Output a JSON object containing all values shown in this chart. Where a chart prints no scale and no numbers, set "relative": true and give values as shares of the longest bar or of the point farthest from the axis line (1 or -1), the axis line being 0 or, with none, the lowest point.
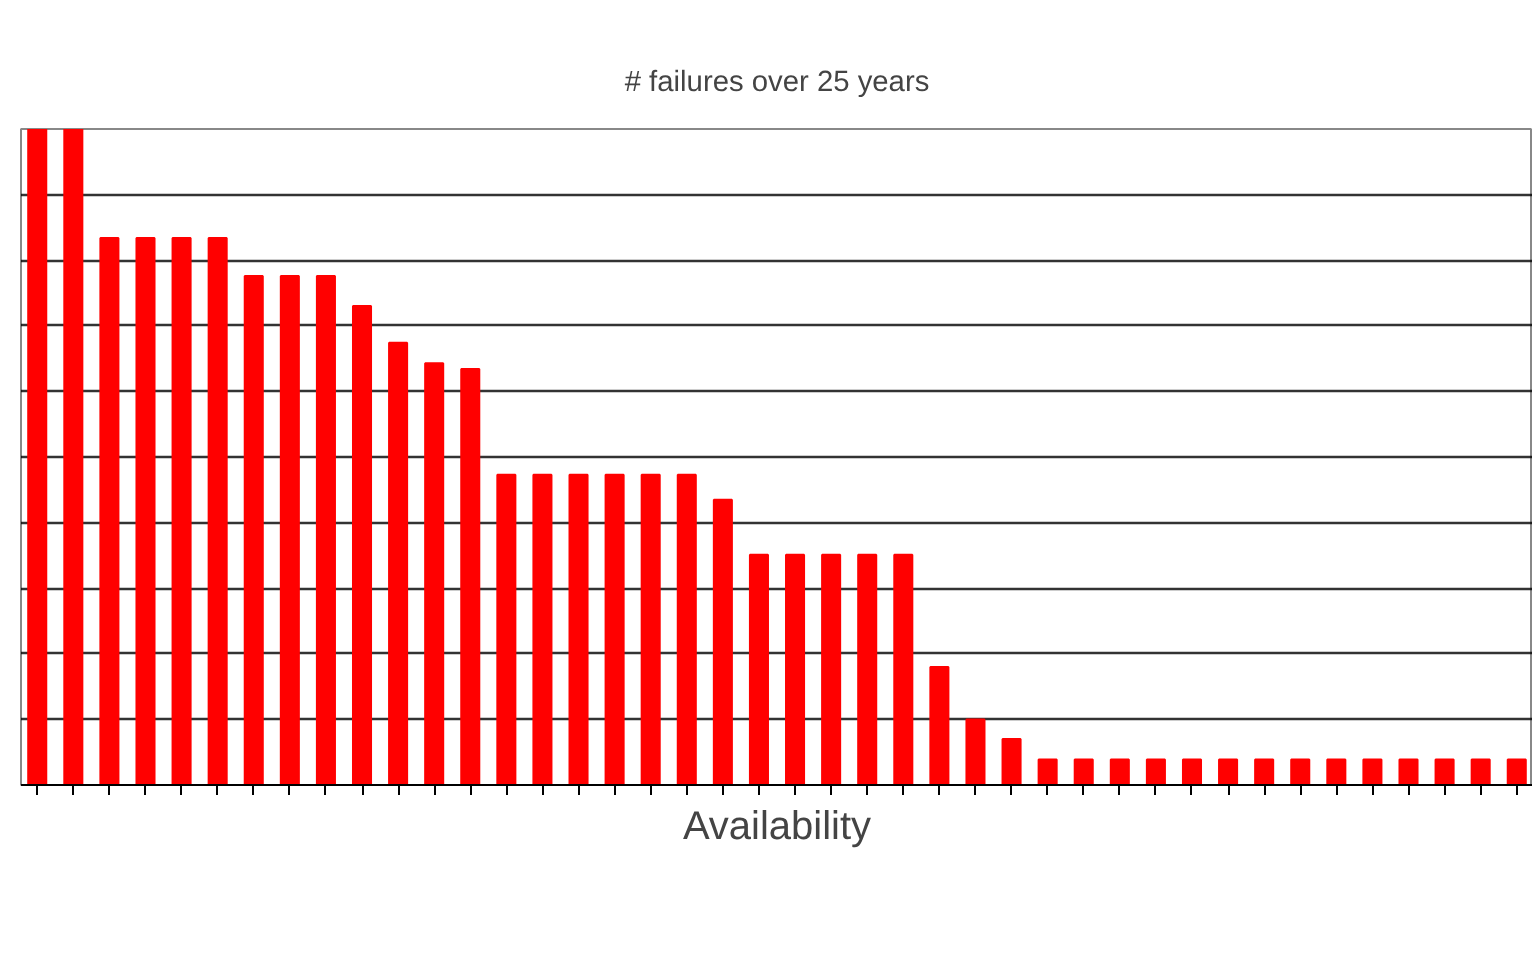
{
  "chart_data": {
    "type": "bar",
    "title": "# failures over 25 years",
    "xlabel": "Availability",
    "relative": true,
    "grid": "y",
    "color": "#ff0000",
    "categories": [
      null,
      null,
      null,
      null,
      null,
      null,
      null,
      null,
      null,
      null,
      null,
      null,
      null,
      null,
      null,
      null,
      null,
      null,
      null,
      null,
      null,
      null,
      null,
      null,
      null,
      null,
      null,
      null,
      null,
      null,
      null,
      null,
      null,
      null,
      null,
      null,
      null,
      null,
      null,
      null,
      null,
      null
    ],
    "values": [
      1,
      1,
      0.834,
      0.834,
      0.834,
      0.834,
      0.776,
      0.776,
      0.776,
      0.73,
      0.674,
      0.643,
      0.634,
      0.473,
      0.473,
      0.473,
      0.473,
      0.473,
      0.473,
      0.435,
      0.351,
      0.351,
      0.351,
      0.351,
      0.351,
      0.18,
      0.1,
      0.07,
      0.039,
      0.039,
      0.039,
      0.039,
      0.039,
      0.039,
      0.039,
      0.039,
      0.039,
      0.039,
      0.039,
      0.039,
      0.039,
      0.039
    ]
  }
}
